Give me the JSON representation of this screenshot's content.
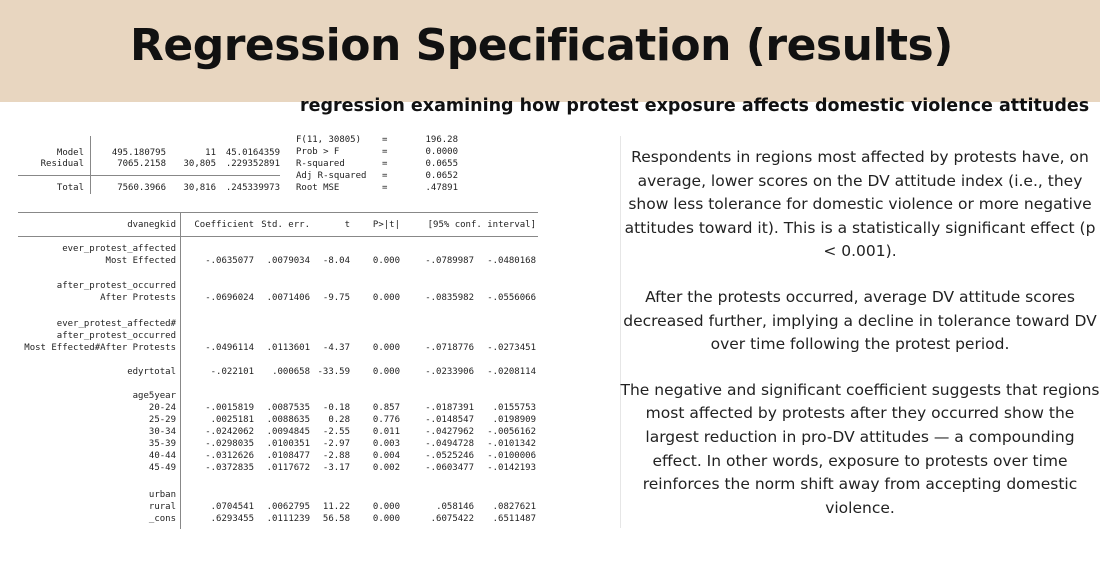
{
  "slide": {
    "title": "Regression Specification (results)",
    "subtitle": "regression examining how protest exposure affects domestic violence attitudes"
  },
  "anova": {
    "rows": [
      {
        "label": "Model",
        "ss": "495.180795",
        "df": "11",
        "ms": "45.0164359"
      },
      {
        "label": "Residual",
        "ss": "7065.2158",
        "df": "30,805",
        "ms": ".229352891"
      },
      {
        "label": "Total",
        "ss": "7560.3966",
        "df": "30,816",
        "ms": ".245339973"
      }
    ],
    "stats": [
      {
        "label": "F(11, 30805)",
        "eq": "=",
        "value": "196.28"
      },
      {
        "label": "Prob > F",
        "eq": "=",
        "value": "0.0000"
      },
      {
        "label": "R-squared",
        "eq": "=",
        "value": "0.0655"
      },
      {
        "label": "Adj R-squared",
        "eq": "=",
        "value": "0.0652"
      },
      {
        "label": "Root MSE",
        "eq": "=",
        "value": ".47891"
      }
    ]
  },
  "coef_table": {
    "depvar": "dvanegkid",
    "headers": [
      "Coefficient",
      "Std. err.",
      "t",
      "P>|t|",
      "[95% conf. interval]"
    ],
    "groups": [
      "ever_protest_affected",
      "after_protest_occurred",
      "ever_protest_affected#",
      "after_protest_occurred",
      "age5year",
      "urban"
    ],
    "rows": [
      {
        "label": "Most Effected",
        "coef": "-.0635077",
        "se": ".0079034",
        "t": "-8.04",
        "p": "0.000",
        "lo": "-.0789987",
        "hi": "-.0480168"
      },
      {
        "label": "After Protests",
        "coef": "-.0696024",
        "se": ".0071406",
        "t": "-9.75",
        "p": "0.000",
        "lo": "-.0835982",
        "hi": "-.0556066"
      },
      {
        "label": "Most Effected#After Protests",
        "coef": "-.0496114",
        "se": ".0113601",
        "t": "-4.37",
        "p": "0.000",
        "lo": "-.0718776",
        "hi": "-.0273451"
      },
      {
        "label": "edyrtotal",
        "coef": "-.022101",
        "se": ".000658",
        "t": "-33.59",
        "p": "0.000",
        "lo": "-.0233906",
        "hi": "-.0208114"
      },
      {
        "label": "20-24",
        "coef": "-.0015819",
        "se": ".0087535",
        "t": "-0.18",
        "p": "0.857",
        "lo": "-.0187391",
        "hi": ".0155753"
      },
      {
        "label": "25-29",
        "coef": ".0025181",
        "se": ".0088635",
        "t": "0.28",
        "p": "0.776",
        "lo": "-.0148547",
        "hi": ".0198909"
      },
      {
        "label": "30-34",
        "coef": "-.0242062",
        "se": ".0094845",
        "t": "-2.55",
        "p": "0.011",
        "lo": "-.0427962",
        "hi": "-.0056162"
      },
      {
        "label": "35-39",
        "coef": "-.0298035",
        "se": ".0100351",
        "t": "-2.97",
        "p": "0.003",
        "lo": "-.0494728",
        "hi": "-.0101342"
      },
      {
        "label": "40-44",
        "coef": "-.0312626",
        "se": ".0108477",
        "t": "-2.88",
        "p": "0.004",
        "lo": "-.0525246",
        "hi": "-.0100006"
      },
      {
        "label": "45-49",
        "coef": "-.0372835",
        "se": ".0117672",
        "t": "-3.17",
        "p": "0.002",
        "lo": "-.0603477",
        "hi": "-.0142193"
      },
      {
        "label": "rural",
        "coef": ".0704541",
        "se": ".0062795",
        "t": "11.22",
        "p": "0.000",
        "lo": ".058146",
        "hi": ".0827621"
      },
      {
        "label": "_cons",
        "coef": ".6293455",
        "se": ".0111239",
        "t": "56.58",
        "p": "0.000",
        "lo": ".6075422",
        "hi": ".6511487"
      }
    ]
  },
  "notes": [
    "Respondents in regions most affected by protests have, on average, lower scores on the DV attitude index (i.e., they show less tolerance for domestic violence or more negative attitudes toward it). This is a statistically significant effect (p < 0.001).",
    "After the protests occurred, average DV attitude scores decreased further, implying a decline in tolerance toward DV over time following the protest period.",
    "The negative and significant coefficient suggests that regions most affected by protests after they occurred show the largest reduction in pro-DV attitudes — a compounding effect. In other words, exposure to protests over time reinforces the norm shift away from accepting domestic violence."
  ]
}
